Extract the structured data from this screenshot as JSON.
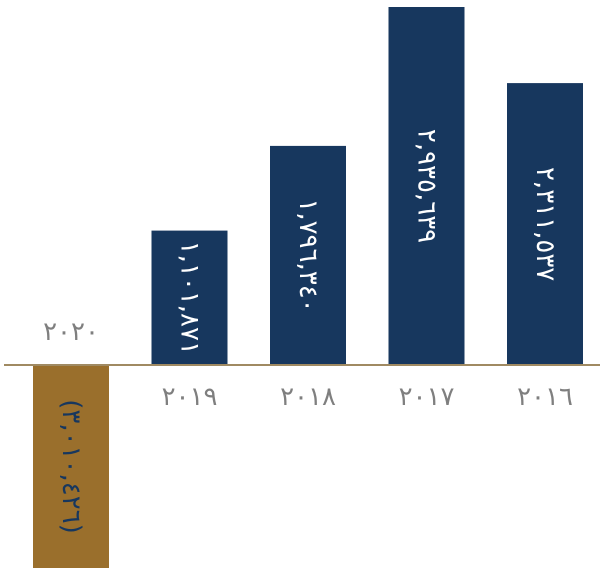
{
  "chart_data": {
    "type": "bar",
    "categories": [
      "٢٠١٦",
      "٢٠١٧",
      "٢٠١٨",
      "٢٠١٩",
      "٢٠٢٠"
    ],
    "values": [
      2311537,
      2935639,
      1796340,
      1101871,
      -3010426
    ],
    "value_labels": [
      "٢,٣١١,٥٣٧",
      "٢,٩٣٥,٦٣٩",
      "١,٧٩٦,٣٤٠",
      "١,١٠١,٨٧١",
      "(٣,٠١٠,٤٢٦)"
    ],
    "title": "",
    "xlabel": "",
    "ylabel": "",
    "ylim": [
      -3010426,
      2935639
    ],
    "category_order": "right-to-left",
    "grid": false,
    "colors": {
      "positive": "#17375e",
      "negative": "#9a6f2c",
      "axis": "#a08a62",
      "category_text": "#7f7f7f",
      "value_text": "#ffffff",
      "value_text_negative": "#17375e"
    }
  }
}
